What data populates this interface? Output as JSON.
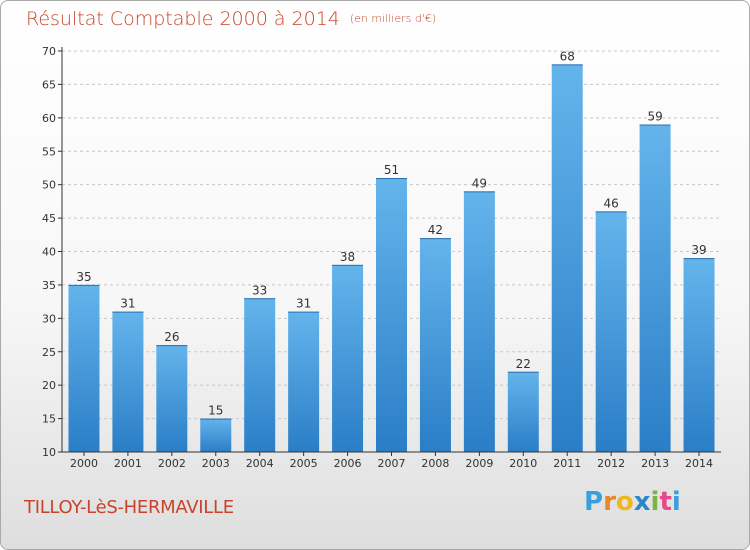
{
  "header": {
    "title": "Résultat Comptable 2000 à 2014",
    "subtitle": "(en milliers d'€)"
  },
  "footer": {
    "commune": "TILLOY-LèS-HERMAVILLE",
    "logo_letters": [
      "P",
      "r",
      "o",
      "x",
      "i",
      "t",
      "i"
    ],
    "logo_colors": [
      "#3aa0dc",
      "#e8872a",
      "#f0b61a",
      "#2a88c9",
      "#7cb342",
      "#e64a8a",
      "#3aa0dc"
    ]
  },
  "colors": {
    "title": "#c8442c",
    "bar_top": "#64b4ec",
    "bar_bottom": "#2a7ec6",
    "grid": "#c8c8c8",
    "axis": "#333333"
  },
  "chart_data": {
    "type": "bar",
    "title": "Résultat Comptable 2000 à 2014",
    "xlabel": "",
    "ylabel": "",
    "categories": [
      "2000",
      "2001",
      "2002",
      "2003",
      "2004",
      "2005",
      "2006",
      "2007",
      "2008",
      "2009",
      "2010",
      "2011",
      "2012",
      "2013",
      "2014"
    ],
    "values": [
      35,
      31,
      26,
      15,
      33,
      31,
      38,
      51,
      42,
      49,
      22,
      68,
      46,
      59,
      39
    ],
    "ylim": [
      10,
      70
    ],
    "yticks": [
      10,
      15,
      20,
      25,
      30,
      35,
      40,
      45,
      50,
      55,
      60,
      65,
      70
    ],
    "grid": true,
    "legend": "none"
  }
}
